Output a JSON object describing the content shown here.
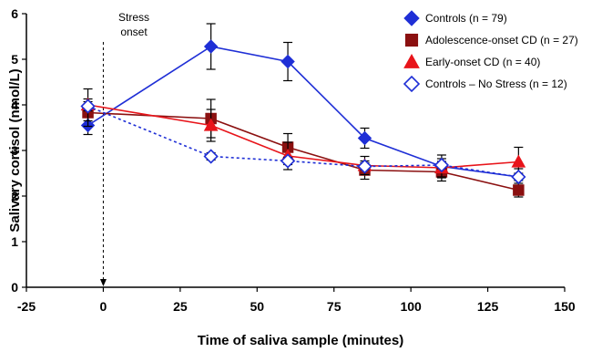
{
  "chart_data": {
    "type": "line",
    "xlabel": "Time of saliva sample (minutes)",
    "ylabel": "Salivary cortisol (nmol/L)",
    "xlim": [
      -25,
      150
    ],
    "ylim": [
      0,
      6
    ],
    "xticks": [
      "-25",
      "0",
      "25",
      "50",
      "75",
      "100",
      "125",
      "150"
    ],
    "yticks": [
      "0",
      "1",
      "2",
      "3",
      "4",
      "5",
      "6"
    ],
    "annotation": {
      "text_line1": "Stress",
      "text_line2": "onset",
      "x": 0
    },
    "legend_position": "top-right",
    "series": [
      {
        "name": "Controls (n = 79)",
        "color": "#1f2fd6",
        "marker": "diamond-filled",
        "line": "solid",
        "x": [
          -5,
          35,
          60,
          85,
          110,
          135
        ],
        "y": [
          3.55,
          5.28,
          4.95,
          3.27,
          2.65,
          2.42
        ],
        "err": [
          0.2,
          0.5,
          0.42,
          0.22,
          0.25,
          0.18
        ]
      },
      {
        "name": "Adolescence-onset CD (n = 27)",
        "color": "#8b1010",
        "marker": "square-filled",
        "line": "solid",
        "x": [
          -5,
          35,
          60,
          85,
          110,
          135
        ],
        "y": [
          3.83,
          3.7,
          3.07,
          2.57,
          2.53,
          2.13
        ],
        "err": [
          0.3,
          0.42,
          0.3,
          0.2,
          0.2,
          0.15
        ]
      },
      {
        "name": "Early-onset CD (n = 40)",
        "color": "#e8141a",
        "marker": "triangle-filled",
        "line": "solid",
        "x": [
          -5,
          35,
          60,
          85,
          110,
          135
        ],
        "y": [
          4.0,
          3.55,
          2.88,
          2.67,
          2.62,
          2.75
        ],
        "err": [
          0.35,
          0.35,
          0.3,
          0.2,
          0.2,
          0.32
        ]
      },
      {
        "name": "Controls – No Stress (n = 12)",
        "color": "#1f2fd6",
        "marker": "diamond-open",
        "line": "dotted",
        "x": [
          -5,
          35,
          60,
          85,
          110,
          135
        ],
        "y": [
          3.97,
          2.87,
          2.77,
          2.65,
          2.68,
          2.42
        ],
        "err": [
          0.1,
          0.08,
          0.08,
          0.08,
          0.08,
          0.08
        ]
      }
    ]
  }
}
